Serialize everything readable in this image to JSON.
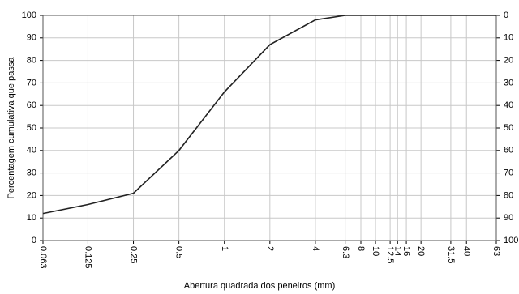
{
  "chart_data": {
    "type": "line",
    "x_label": "Abertura quadrada dos peneiros (mm)",
    "y_label": "Percentagem cumulativa que passa",
    "x": [
      0.063,
      0.125,
      0.25,
      0.5,
      1,
      2,
      4,
      6.3,
      8,
      10,
      12.5,
      14,
      16,
      20,
      31.5,
      40,
      63
    ],
    "values": [
      12,
      16,
      21,
      40,
      66,
      87,
      98,
      100,
      100,
      100,
      100,
      100,
      100,
      100,
      100,
      100,
      100
    ],
    "color": "#222222",
    "xscale": "log",
    "xlim": [
      0.063,
      63
    ],
    "xticks": [
      0.063,
      0.125,
      0.25,
      0.5,
      1,
      2,
      4,
      6.3,
      8,
      10,
      12.5,
      14,
      16,
      20,
      31.5,
      40,
      63
    ],
    "ylim": [
      0,
      100
    ],
    "yticks": [
      0,
      10,
      20,
      30,
      40,
      50,
      60,
      70,
      80,
      90,
      100
    ],
    "y2lim": [
      100,
      0
    ],
    "y2ticks": [
      0,
      10,
      20,
      30,
      40,
      50,
      60,
      70,
      80,
      90,
      100
    ],
    "grid": true
  }
}
